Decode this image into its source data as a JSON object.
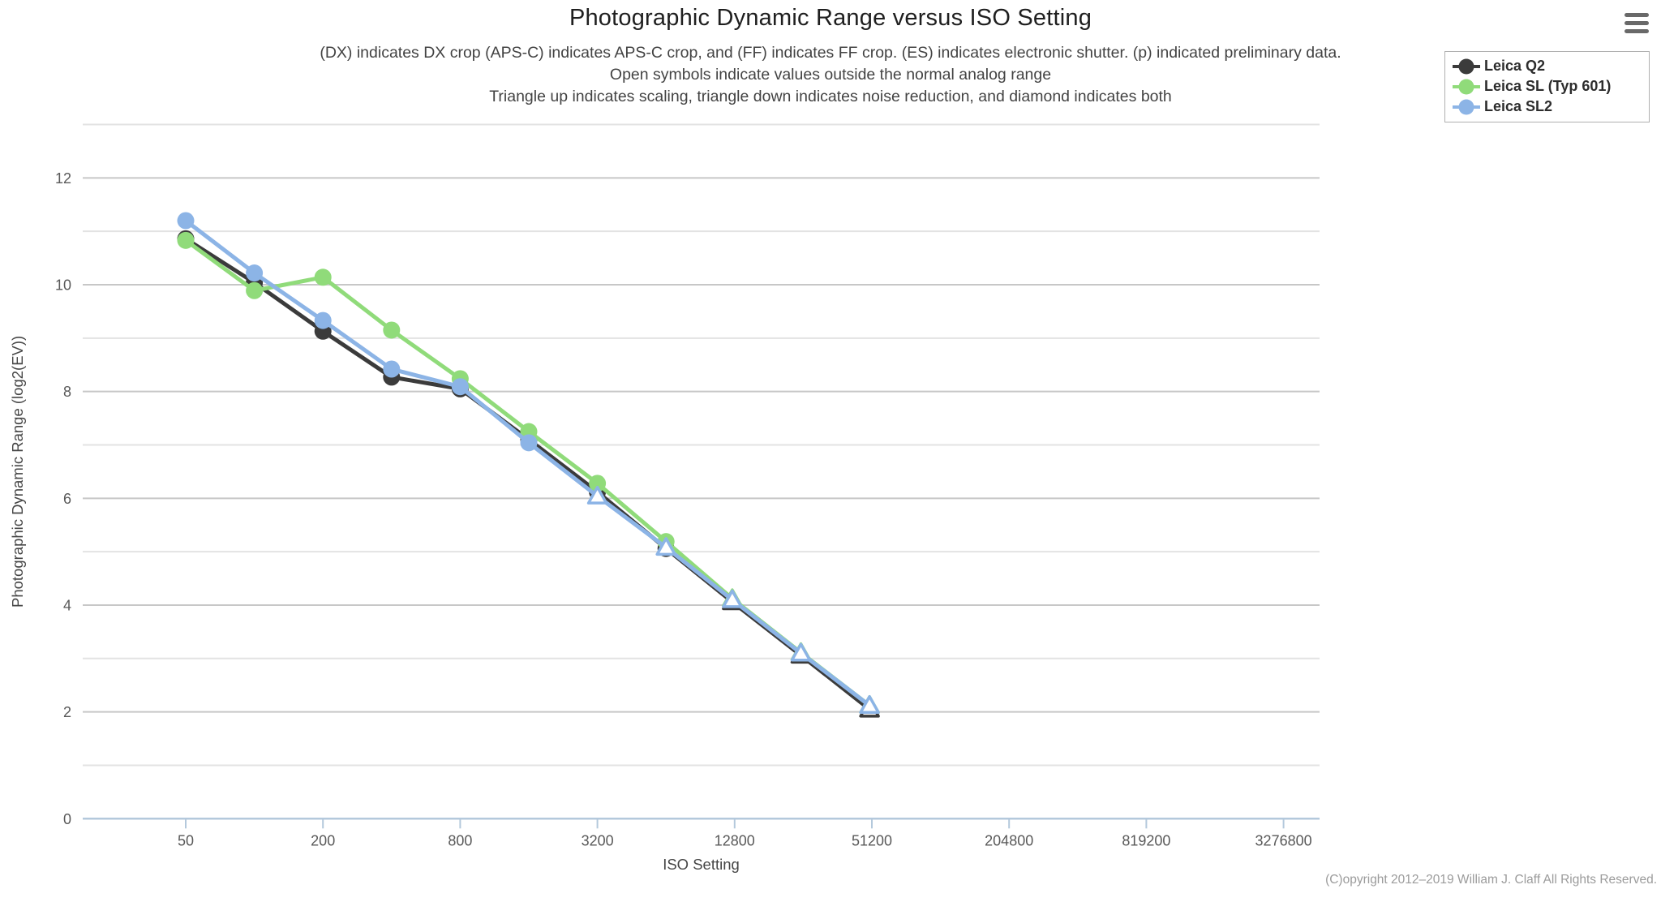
{
  "header": {
    "subtitle_lines": [
      "(DX) indicates DX crop (APS-C) indicates APS-C crop, and (FF) indicates FF crop. (ES) indicates electronic shutter. (p) indicated preliminary data.",
      "Open symbols indicate values outside the normal analog range",
      "Triangle up indicates scaling, triangle down indicates noise reduction, and diamond indicates both"
    ]
  },
  "controls": {
    "menu_icon": "hamburger-icon"
  },
  "footer": {
    "copyright": "(C)opyright 2012–2019 William J. Claff All Rights Reserved."
  },
  "theme": {
    "grid_major": "#c7c7c7",
    "grid_minor": "#e3e3e3",
    "axis": "#b4c9dc",
    "background": "#ffffff"
  },
  "chart_data": {
    "type": "line",
    "title": "Photographic Dynamic Range versus ISO Setting",
    "xlabel": "ISO Setting",
    "ylabel": "Photographic Dynamic Range (log2(EV))",
    "x_scale": "log2",
    "x_base": 50,
    "grid": "horizontal major+minor",
    "legend_position": "top-right",
    "x_ticks": [
      50,
      200,
      800,
      3200,
      12800,
      51200,
      204800,
      819200,
      3276800
    ],
    "y_ticks": [
      0,
      2,
      4,
      6,
      8,
      10,
      12
    ],
    "ylim": [
      0,
      13
    ],
    "x": [
      50,
      100,
      200,
      400,
      800,
      1600,
      3200,
      6400,
      12500,
      25000,
      50000
    ],
    "series": [
      {
        "name": "Leica Q2",
        "color": "#3b3b3b",
        "values": [
          10.86,
          10.04,
          9.13,
          8.27,
          8.05,
          7.1,
          6.12,
          5.06,
          4.06,
          3.06,
          2.05
        ],
        "markers": [
          "circle",
          "circle",
          "circle",
          "circle",
          "circle",
          "circle",
          "circle",
          "circle",
          "triangle-open",
          "triangle-open",
          "triangle-open"
        ]
      },
      {
        "name": "Leica SL (Typ 601)",
        "color": "#90db7a",
        "values": [
          10.83,
          9.89,
          10.14,
          9.15,
          8.24,
          7.25,
          6.28,
          5.19,
          4.12,
          3.11,
          2.12
        ],
        "markers": [
          "circle",
          "circle",
          "circle",
          "circle",
          "circle",
          "circle",
          "circle",
          "circle",
          "triangle-open",
          "triangle-open",
          "triangle-open"
        ]
      },
      {
        "name": "Leica SL2",
        "color": "#8cb4e6",
        "values": [
          11.2,
          10.22,
          9.33,
          8.42,
          8.09,
          7.04,
          6.04,
          5.08,
          4.1,
          3.1,
          2.12
        ],
        "markers": [
          "circle",
          "circle",
          "circle",
          "circle",
          "circle",
          "circle",
          "triangle-open",
          "triangle-open",
          "triangle-open",
          "triangle-open",
          "triangle-open"
        ]
      }
    ]
  }
}
